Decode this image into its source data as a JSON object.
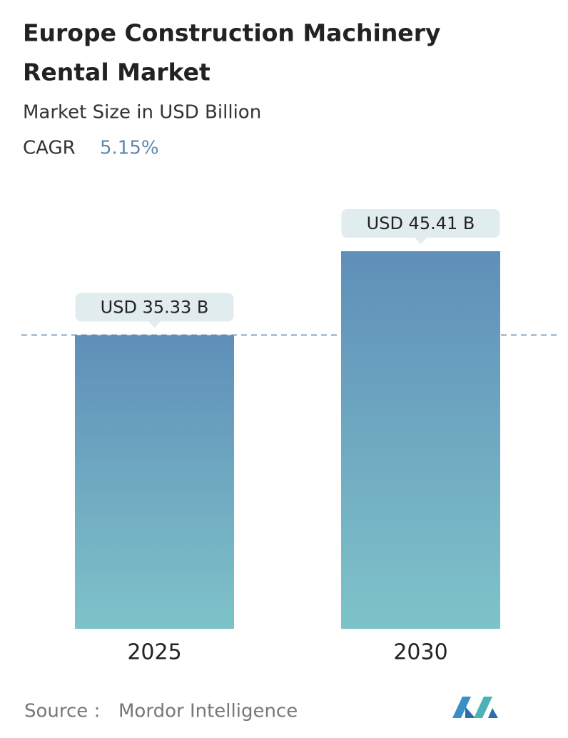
{
  "chart_data": {
    "type": "bar",
    "title": "Europe Construction Machinery Rental Market",
    "subtitle": "Market Size in USD Billion",
    "cagr_label": "CAGR",
    "cagr": "5.15%",
    "categories": [
      "2025",
      "2030"
    ],
    "values": [
      35.33,
      45.41
    ],
    "value_labels": [
      "USD 35.33 B",
      "USD 45.41 B"
    ],
    "source_label": "Source :",
    "source": "Mordor Intelligence"
  }
}
